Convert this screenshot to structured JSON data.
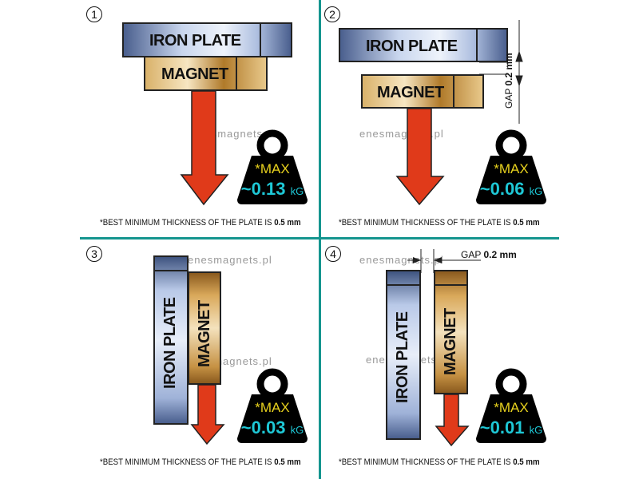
{
  "watermark": "enesmagnets.pl",
  "logo": "Enes",
  "colors": {
    "divider": "#14958f",
    "arrow": "#e03a1a",
    "weight": "#000000",
    "max_text": "#e8d21e",
    "value_text": "#1ec8d6"
  },
  "panels": [
    {
      "number": "1",
      "iron_label": "IRON PLATE",
      "magnet_label": "MAGNET",
      "max_label": "*MAX",
      "value": "~0.13",
      "unit": "kG",
      "note": "*BEST MINIMUM THICKNESS OF THE PLATE IS ",
      "note_bold": "0.5 mm"
    },
    {
      "number": "2",
      "iron_label": "IRON PLATE",
      "magnet_label": "MAGNET",
      "max_label": "*MAX",
      "value": "~0.06",
      "unit": "kG",
      "gap_label": "GAP",
      "gap_value": "0.2 mm",
      "note": "*BEST MINIMUM THICKNESS OF THE PLATE IS ",
      "note_bold": "0.5 mm"
    },
    {
      "number": "3",
      "iron_label": "IRON  PLATE",
      "magnet_label": "MAGNET",
      "max_label": "*MAX",
      "value": "~0.03",
      "unit": "kG",
      "note": "*BEST MINIMUM THICKNESS OF THE PLATE IS ",
      "note_bold": "0.5 mm"
    },
    {
      "number": "4",
      "iron_label": "IRON PLATE",
      "magnet_label": "MAGNET",
      "max_label": "*MAX",
      "value": "~0.01",
      "unit": "kG",
      "gap_label": "GAP",
      "gap_value": "0.2 mm",
      "note": "*BEST MINIMUM THICKNESS OF THE PLATE IS ",
      "note_bold": "0.5 mm"
    }
  ]
}
